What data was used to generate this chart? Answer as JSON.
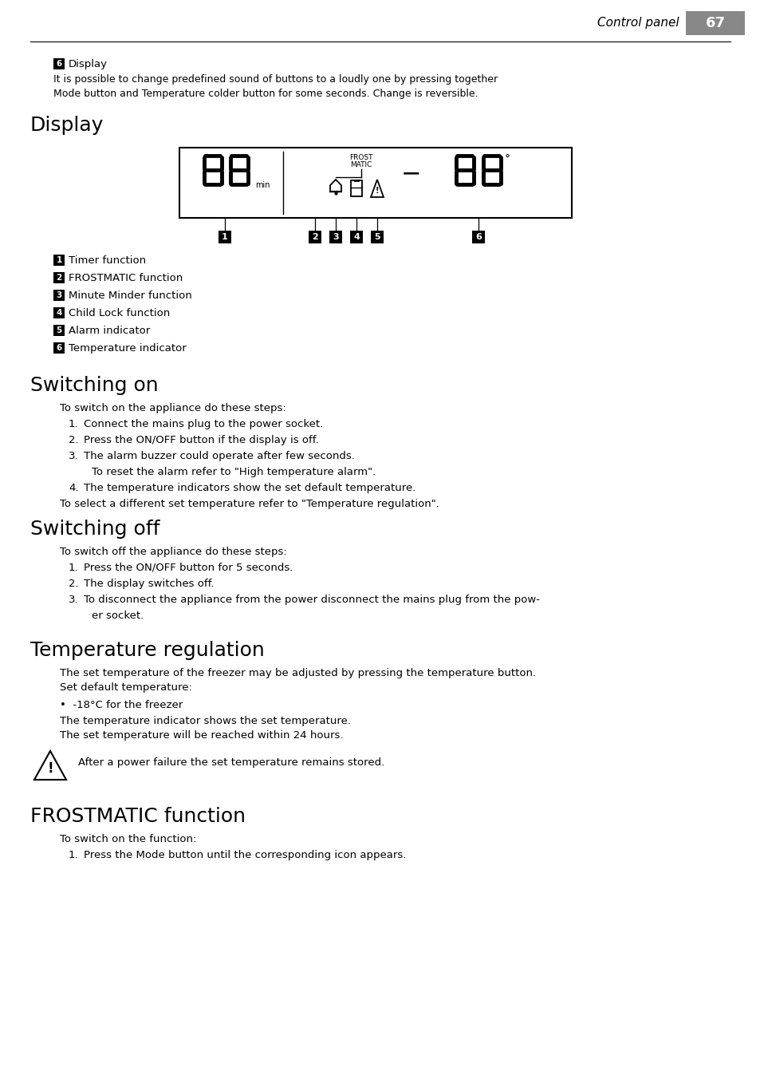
{
  "page_num": "67",
  "header_text": "Control panel",
  "header_bg": "#888888",
  "bg_color": "#ffffff",
  "section0_badge": "6",
  "section0_badge_text": "Display",
  "section0_body": "It is possible to change predefined sound of buttons to a loudly one by pressing together\nMode button and Temperature colder button for some seconds. Change is reversible.",
  "section1_heading": "Display",
  "legend_items": [
    [
      "1",
      "Timer function"
    ],
    [
      "2",
      "FROSTMATIC function"
    ],
    [
      "3",
      "Minute Minder function"
    ],
    [
      "4",
      "Child Lock function"
    ],
    [
      "5",
      "Alarm indicator"
    ],
    [
      "6",
      "Temperature indicator"
    ]
  ],
  "section2_heading": "Switching on",
  "section2_intro": "To switch on the appliance do these steps:",
  "section2_items": [
    [
      "Connect the mains plug to the power socket.",
      null
    ],
    [
      "Press the ON/OFF button if the display is off.",
      null
    ],
    [
      "The alarm buzzer could operate after few seconds.",
      "To reset the alarm refer to \"High temperature alarm\"."
    ],
    [
      "The temperature indicators show the set default temperature.",
      null
    ]
  ],
  "section2_outro": "To select a different set temperature refer to \"Temperature regulation\".",
  "section3_heading": "Switching off",
  "section3_intro": "To switch off the appliance do these steps:",
  "section3_items": [
    [
      "Press the ON/OFF button for 5 seconds.",
      null
    ],
    [
      "The display switches off.",
      null
    ],
    [
      "To disconnect the appliance from the power disconnect the mains plug from the pow-",
      "er socket."
    ]
  ],
  "section4_heading": "Temperature regulation",
  "section4_body1": "The set temperature of the freezer may be adjusted by pressing the temperature button.\nSet default temperature:",
  "section4_bullet": "•  -18°C for the freezer",
  "section4_body2": "The temperature indicator shows the set temperature.\nThe set temperature will be reached within 24 hours.",
  "section4_warning": "After a power failure the set temperature remains stored.",
  "section5_heading": "FROSTMATIC function",
  "section5_intro": "To switch on the function:",
  "section5_items": [
    "Press the Mode button until the corresponding icon appears."
  ]
}
